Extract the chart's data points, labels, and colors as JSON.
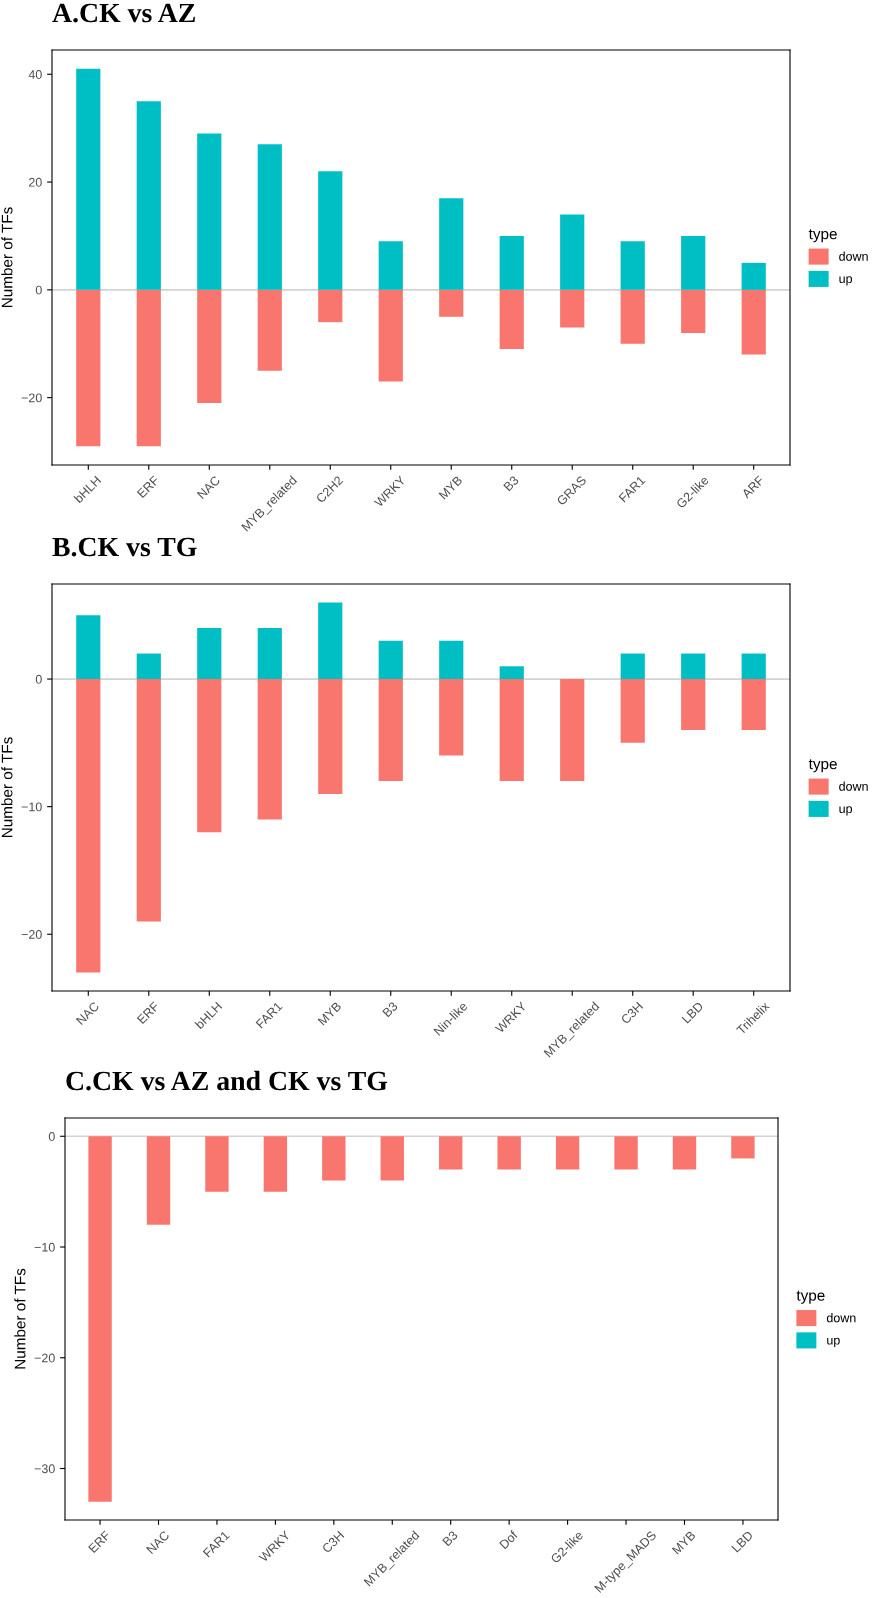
{
  "chart_data": [
    {
      "type": "bar",
      "title": "A.CK vs AZ",
      "ylabel": "Number of TFs",
      "legend_title": "type",
      "legend": "right",
      "stacked": true,
      "grid": false,
      "categories": [
        "bHLH",
        "ERF",
        "NAC",
        "MYB_related",
        "C2H2",
        "WRKY",
        "MYB",
        "B3",
        "GRAS",
        "FAR1",
        "G2-like",
        "ARF"
      ],
      "series": [
        {
          "name": "down",
          "color": "#f8766d",
          "values": [
            -29,
            -29,
            -21,
            -15,
            -6,
            -17,
            -5,
            -11,
            -7,
            -10,
            -8,
            -12
          ]
        },
        {
          "name": "up",
          "color": "#00bfc4",
          "values": [
            41,
            35,
            29,
            27,
            22,
            9,
            17,
            10,
            14,
            9,
            10,
            5
          ]
        }
      ],
      "ylim": [
        -32.5,
        44.5
      ],
      "yticks": [
        -20,
        0,
        20,
        40
      ],
      "ref_lines": [
        {
          "axis": "y",
          "value": 0,
          "color": "#d3d3d3"
        }
      ]
    },
    {
      "type": "bar",
      "title": "B.CK vs TG",
      "ylabel": "Number of TFs",
      "legend_title": "type",
      "legend": "right",
      "stacked": true,
      "grid": false,
      "categories": [
        "NAC",
        "ERF",
        "bHLH",
        "FAR1",
        "MYB",
        "B3",
        "Nin-like",
        "WRKY",
        "MYB_related",
        "C3H",
        "LBD",
        "Trihelix"
      ],
      "series": [
        {
          "name": "down",
          "color": "#f8766d",
          "values": [
            -23,
            -19,
            -12,
            -11,
            -9,
            -8,
            -6,
            -8,
            -8,
            -5,
            -4,
            -4
          ]
        },
        {
          "name": "up",
          "color": "#00bfc4",
          "values": [
            5,
            2,
            4,
            4,
            6,
            3,
            3,
            1,
            null,
            2,
            2,
            2
          ]
        }
      ],
      "ylim": [
        -24.45,
        7.45
      ],
      "yticks": [
        -20,
        -10,
        0
      ],
      "ref_lines": [
        {
          "axis": "y",
          "value": 0,
          "color": "#d3d3d3"
        }
      ]
    },
    {
      "type": "bar",
      "title": "C.CK vs AZ and CK vs TG",
      "ylabel": "Number of TFs",
      "legend_title": "type",
      "legend": "right",
      "stacked": true,
      "grid": false,
      "categories": [
        "ERF",
        "NAC",
        "FAR1",
        "WRKY",
        "C3H",
        "MYB_related",
        "B3",
        "Dof",
        "G2-like",
        "M-type_MADS",
        "MYB",
        "LBD"
      ],
      "series": [
        {
          "name": "down",
          "color": "#f8766d",
          "values": [
            -33,
            -8,
            -5,
            -5,
            -4,
            -4,
            -3,
            -3,
            -3,
            -3,
            -3,
            -2
          ]
        },
        {
          "name": "up",
          "color": "#00bfc4",
          "values": [
            null,
            null,
            null,
            null,
            null,
            null,
            null,
            null,
            null,
            null,
            null,
            null
          ]
        }
      ],
      "ylim": [
        -34.65,
        1.65
      ],
      "yticks": [
        -30,
        -20,
        -10,
        0
      ],
      "ref_lines": [
        {
          "axis": "y",
          "value": 0,
          "color": "#d3d3d3"
        }
      ]
    }
  ]
}
